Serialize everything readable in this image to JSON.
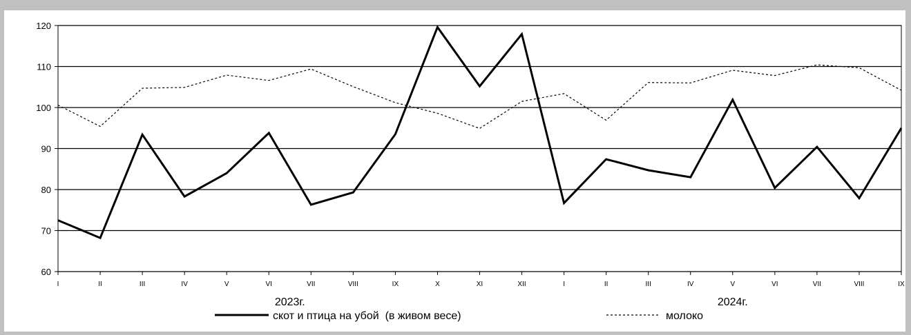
{
  "chart_data": {
    "type": "line",
    "title": "",
    "xlabel": "",
    "ylabel": "",
    "ylim": [
      60,
      120
    ],
    "yticks": [
      60,
      70,
      80,
      90,
      100,
      110,
      120
    ],
    "categories": [
      "I",
      "II",
      "III",
      "IV",
      "V",
      "VI",
      "VII",
      "VIII",
      "IX",
      "X",
      "XI",
      "XII",
      "I",
      "II",
      "III",
      "IV",
      "V",
      "VI",
      "VII",
      "VIII",
      "IX"
    ],
    "year_groups": [
      {
        "label": "2023г.",
        "start": 0,
        "end": 11
      },
      {
        "label": "2024г.",
        "start": 12,
        "end": 20
      }
    ],
    "grid": "horizontal",
    "legend_position": "bottom",
    "series": [
      {
        "name": "скот и птица на убой  (в живом весе)",
        "style": "solid",
        "color": "#000000",
        "values": [
          72.5,
          68.2,
          93.4,
          78.3,
          84.0,
          93.8,
          76.3,
          79.3,
          93.5,
          119.6,
          105.2,
          117.9,
          76.7,
          87.4,
          84.7,
          83.0,
          101.9,
          80.4,
          90.4,
          77.9,
          95.0
        ]
      },
      {
        "name": "молоко",
        "style": "dotted",
        "color": "#000000",
        "values": [
          100.6,
          95.4,
          104.7,
          104.9,
          107.9,
          106.6,
          109.4,
          105.1,
          101.2,
          98.6,
          94.9,
          101.5,
          103.4,
          96.9,
          106.1,
          106.0,
          109.1,
          107.8,
          110.4,
          109.7,
          104.2
        ]
      }
    ]
  }
}
